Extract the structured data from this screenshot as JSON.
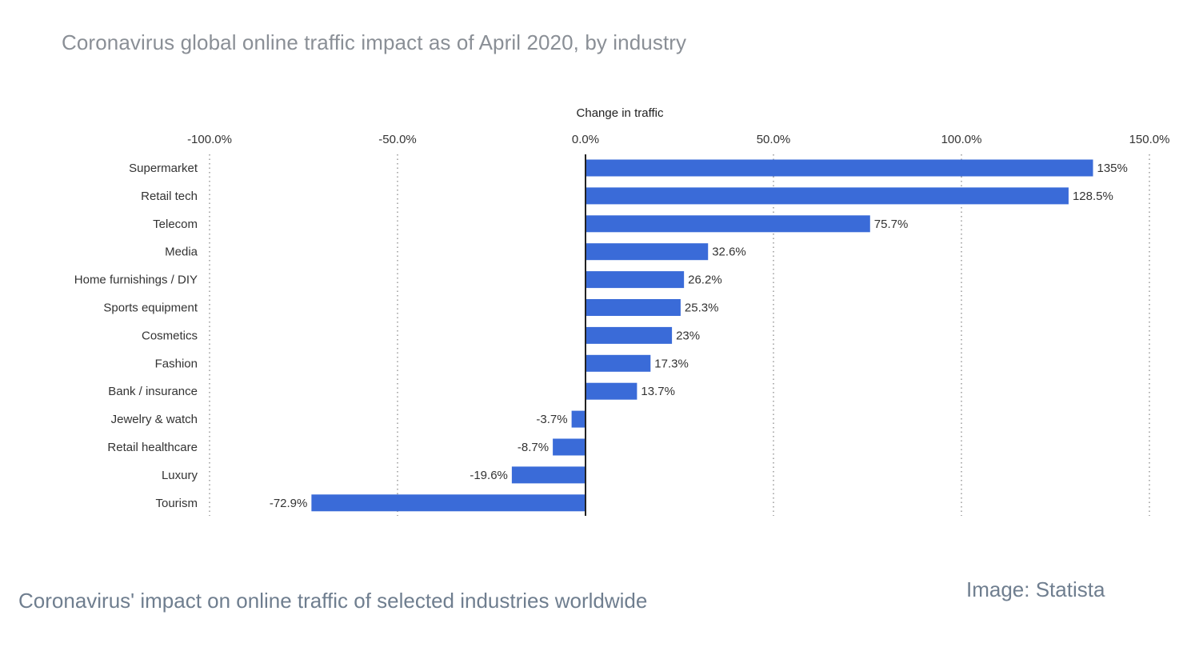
{
  "chart_data": {
    "type": "bar",
    "orientation": "horizontal",
    "title": "Coronavirus global online traffic impact as of April 2020, by industry",
    "xlabel": "Change in traffic",
    "ylabel": "",
    "xlim": [
      -100,
      150
    ],
    "x_ticks": [
      -100,
      -50,
      0,
      50,
      100,
      150
    ],
    "x_tick_labels": [
      "-100.0%",
      "-50.0%",
      "0.0%",
      "50.0%",
      "100.0%",
      "150.0%"
    ],
    "grid": "vertical dotted",
    "bar_color": "#3a6bd8",
    "categories": [
      "Supermarket",
      "Retail tech",
      "Telecom",
      "Media",
      "Home furnishings / DIY",
      "Sports equipment",
      "Cosmetics",
      "Fashion",
      "Bank / insurance",
      "Jewelry & watch",
      "Retail healthcare",
      "Luxury",
      "Tourism"
    ],
    "values": [
      135,
      128.5,
      75.7,
      32.6,
      26.2,
      25.3,
      23,
      17.3,
      13.7,
      -3.7,
      -8.7,
      -19.6,
      -72.9
    ],
    "value_labels": [
      "135%",
      "128.5%",
      "75.7%",
      "32.6%",
      "26.2%",
      "25.3%",
      "23%",
      "17.3%",
      "13.7%",
      "-3.7%",
      "-8.7%",
      "-19.6%",
      "-72.9%"
    ]
  },
  "caption": "Coronavirus' impact on online traffic of selected industries worldwide",
  "credit": "Image: Statista"
}
